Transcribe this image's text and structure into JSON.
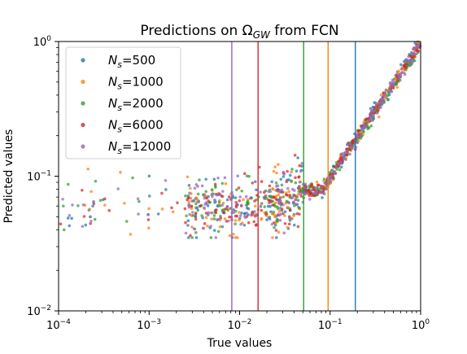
{
  "chart_data": {
    "type": "scatter",
    "title": "Predictions on Ω",
    "title_sub": "GW",
    "title_suffix": " from FCN",
    "xlabel": "True values",
    "ylabel": "Predicted values",
    "x_scale": "log",
    "y_scale": "log",
    "xlim": [
      0.0001,
      1
    ],
    "ylim": [
      0.01,
      1
    ],
    "grid": false,
    "legend_position": "upper-left",
    "x_ticks": [
      {
        "value": 0.0001,
        "base": "10",
        "exp": "−4"
      },
      {
        "value": 0.001,
        "base": "10",
        "exp": "−3"
      },
      {
        "value": 0.01,
        "base": "10",
        "exp": "−2"
      },
      {
        "value": 0.1,
        "base": "10",
        "exp": "−1"
      },
      {
        "value": 1,
        "base": "10",
        "exp": "0"
      }
    ],
    "y_ticks": [
      {
        "value": 0.01,
        "base": "10",
        "exp": "−2"
      },
      {
        "value": 0.1,
        "base": "10",
        "exp": "−1"
      },
      {
        "value": 1,
        "base": "10",
        "exp": "0"
      }
    ],
    "series": [
      {
        "name_main": "N",
        "name_sub": "s",
        "name_value": "=500",
        "color": "#1f77b4",
        "threshold": 0.19,
        "seed": 11
      },
      {
        "name_main": "N",
        "name_sub": "s",
        "name_value": "=1000",
        "color": "#ff7f0e",
        "threshold": 0.095,
        "seed": 23
      },
      {
        "name_main": "N",
        "name_sub": "s",
        "name_value": "=2000",
        "color": "#2ca02c",
        "threshold": 0.051,
        "seed": 37
      },
      {
        "name_main": "N",
        "name_sub": "s",
        "name_value": "=6000",
        "color": "#d62728",
        "threshold": 0.016,
        "seed": 41
      },
      {
        "name_main": "N",
        "name_sub": "s",
        "name_value": "=12000",
        "color": "#9467bd",
        "threshold": 0.0082,
        "seed": 53
      }
    ]
  }
}
